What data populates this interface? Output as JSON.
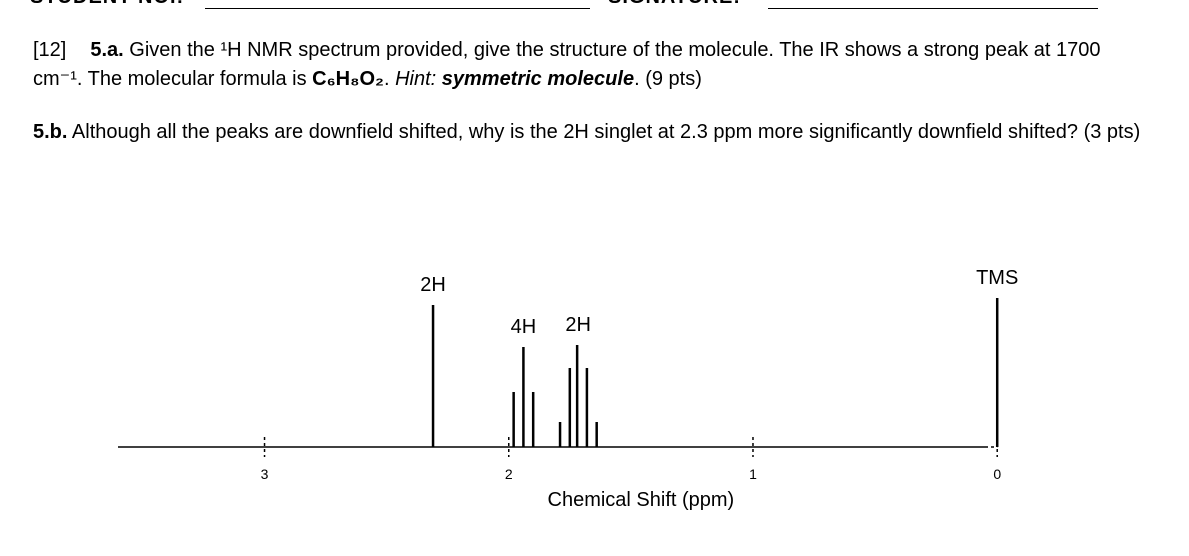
{
  "header": {
    "student_no": "STUDENT NO.:",
    "signature": "SIGNATURE:"
  },
  "question_a": {
    "points_total": "[12]",
    "number": "5.a.",
    "text_1": " Given the ¹H NMR spectrum provided, give the structure of the molecule.  The IR shows a strong peak at 1700 cm⁻¹.  The molecular formula is ",
    "formula": "C₆H₈O₂",
    "text_2": ".  ",
    "hint": "Hint:  ",
    "hint_text": "symmetric molecule",
    "text_3": ".  (9 pts)"
  },
  "question_b": {
    "number": "5.b.",
    "text": " Although all the peaks are downfield shifted, why is the 2H singlet at 2.3 ppm more significantly downfield shifted?  (3 pts)"
  },
  "spectrum": {
    "x_label": "Chemical Shift (ppm)",
    "xlim": [
      3.6,
      0.05
    ],
    "xticks": [
      3,
      2,
      1,
      0
    ],
    "ylim": [
      0,
      150
    ],
    "signals": [
      {
        "label": "2H",
        "peaks": [
          {
            "shift": 2.31,
            "height": 142
          }
        ]
      },
      {
        "label": "4H",
        "peaks": [
          {
            "shift": 1.98,
            "height": 55
          },
          {
            "shift": 1.94,
            "height": 100
          },
          {
            "shift": 1.9,
            "height": 55
          }
        ]
      },
      {
        "label": "2H",
        "peaks": [
          {
            "shift": 1.79,
            "height": 25
          },
          {
            "shift": 1.75,
            "height": 79
          },
          {
            "shift": 1.72,
            "height": 102
          },
          {
            "shift": 1.68,
            "height": 79
          },
          {
            "shift": 1.64,
            "height": 25
          }
        ]
      },
      {
        "label": "TMS",
        "peaks": [
          {
            "shift": 0,
            "height": 149
          }
        ]
      }
    ]
  }
}
